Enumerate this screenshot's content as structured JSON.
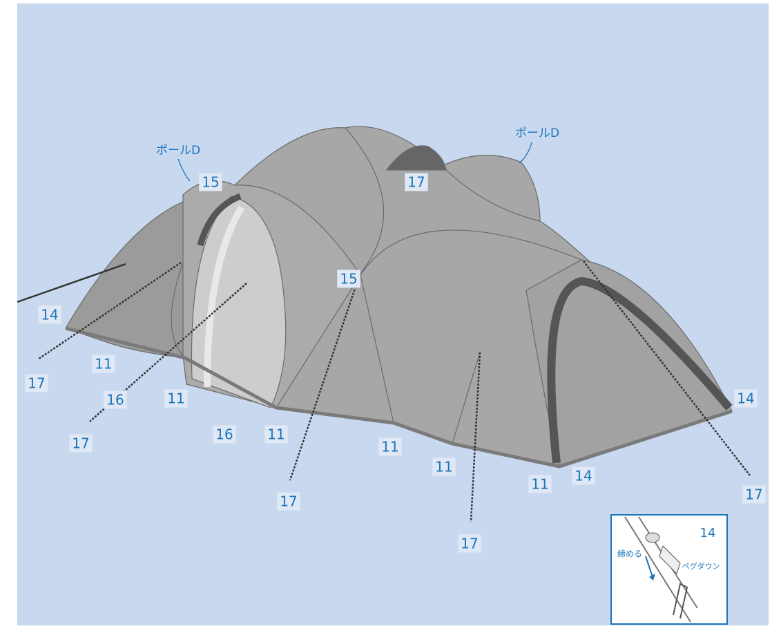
{
  "labels": [
    "ポールD",
    "ポールD",
    "15",
    "17",
    "15",
    "14",
    "11",
    "17",
    "16",
    "11",
    "17",
    "16",
    "11",
    "11",
    "17",
    "11",
    "11",
    "14",
    "14",
    "17",
    "17"
  ],
  "inset": {
    "number": "14",
    "tighten": "締める",
    "peg_down": "ペグダウン"
  }
}
